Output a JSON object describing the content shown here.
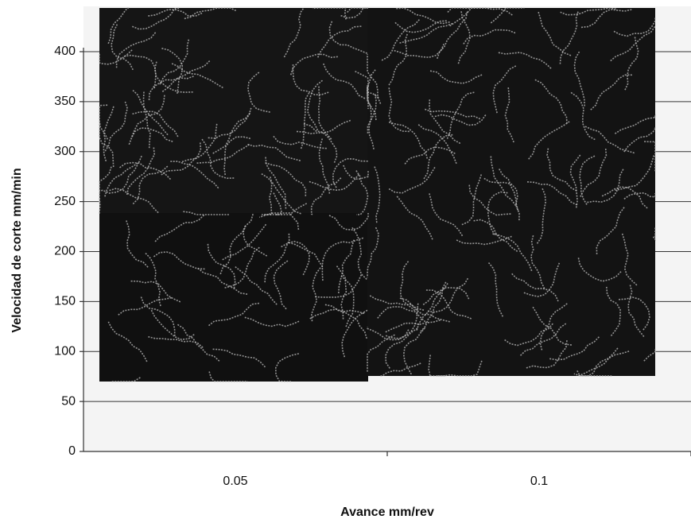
{
  "chart_data": {
    "type": "bar",
    "x_label": "Avance mm/rev",
    "y_label": "Velocidad de corte mm/min",
    "categories": [
      "0.05",
      "0.1"
    ],
    "ylim": [
      0,
      400
    ],
    "yticks": [
      0,
      50,
      100,
      150,
      200,
      250,
      300,
      350,
      400
    ],
    "grid": true
  }
}
